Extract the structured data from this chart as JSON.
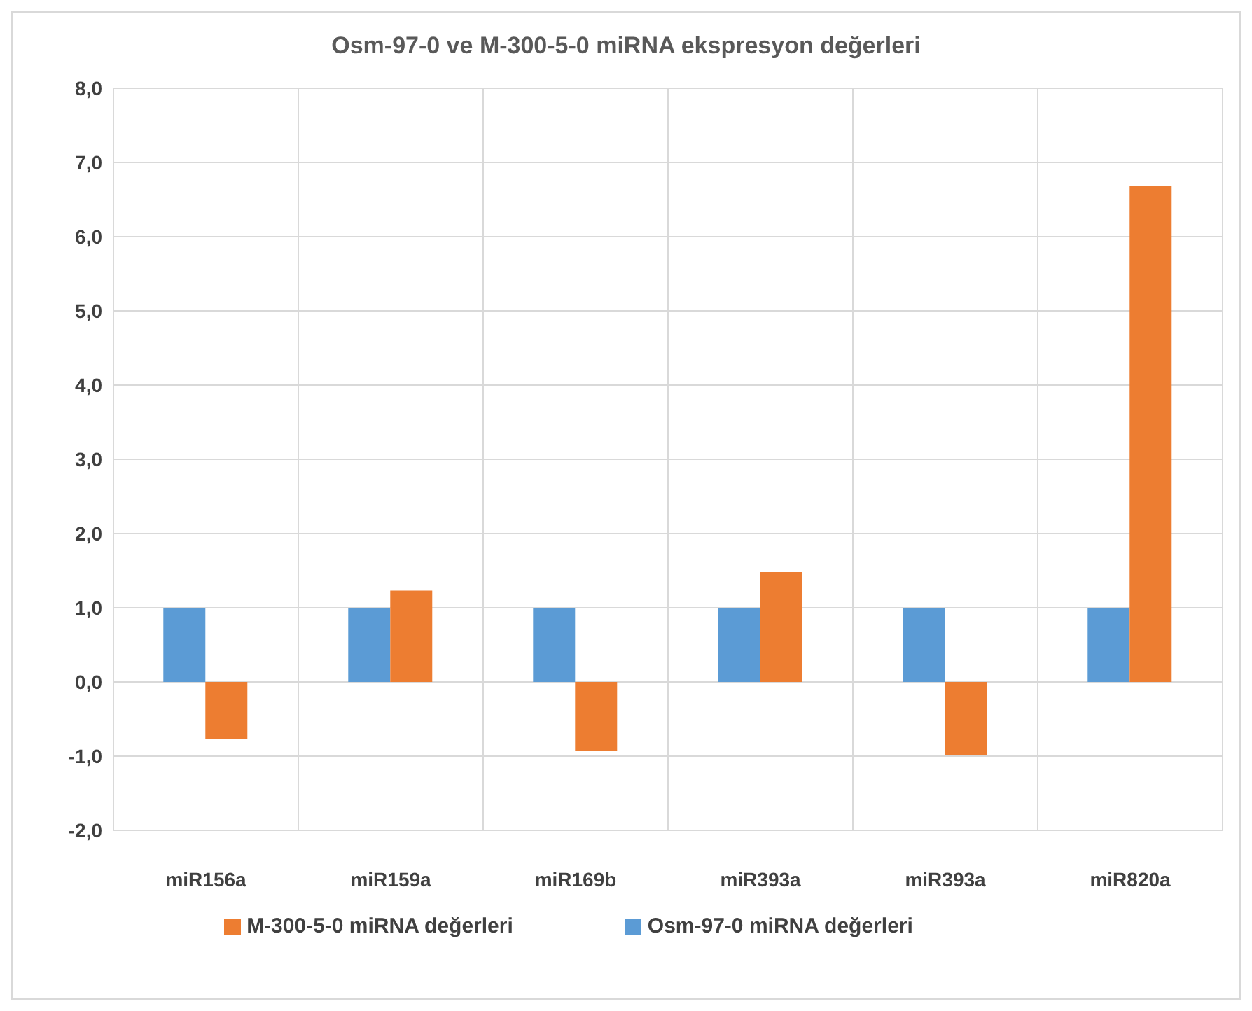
{
  "chart_data": {
    "type": "bar",
    "title": "Osm-97-0 ve M-300-5-0 miRNA ekspresyon değerleri",
    "categories": [
      "miR156a",
      "miR159a",
      "miR169b",
      "miR393a",
      "miR393a",
      "miR820a"
    ],
    "series": [
      {
        "name": "Osm-97-0 miRNA değerleri",
        "color": "#5b9bd5",
        "values": [
          1.0,
          1.0,
          1.0,
          1.0,
          1.0,
          1.0
        ]
      },
      {
        "name": "M-300-5-0 miRNA değerleri",
        "color": "#ed7d31",
        "values": [
          -0.77,
          1.23,
          -0.93,
          1.48,
          -0.98,
          6.68
        ]
      }
    ],
    "ylim": [
      -2,
      8
    ],
    "yticks": [
      {
        "value": -2,
        "label": "-2,0"
      },
      {
        "value": -1,
        "label": "-1,0"
      },
      {
        "value": 0,
        "label": "0,0"
      },
      {
        "value": 1,
        "label": "1,0"
      },
      {
        "value": 2,
        "label": "2,0"
      },
      {
        "value": 3,
        "label": "3,0"
      },
      {
        "value": 4,
        "label": "4,0"
      },
      {
        "value": 5,
        "label": "5,0"
      },
      {
        "value": 6,
        "label": "6,0"
      },
      {
        "value": 7,
        "label": "7,0"
      },
      {
        "value": 8,
        "label": "8,0"
      }
    ],
    "grid": true,
    "legend": "bottom"
  }
}
